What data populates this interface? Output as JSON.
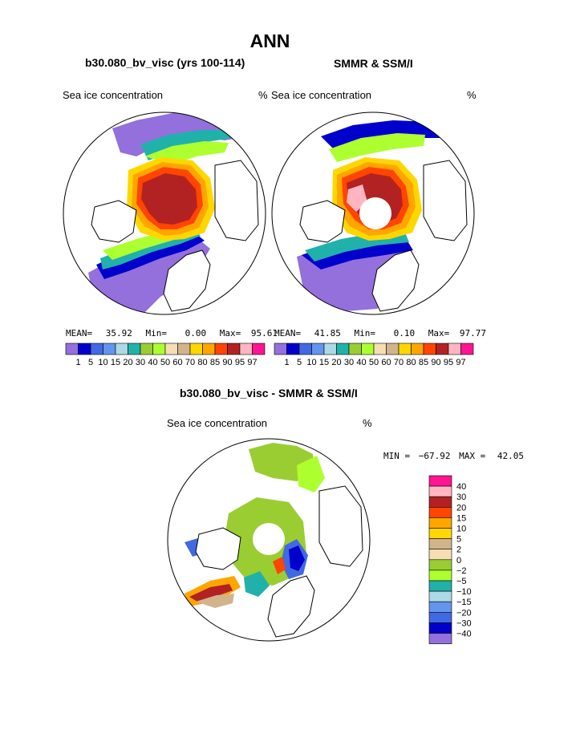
{
  "title": "ANN",
  "panel_left": {
    "case": "b30.080_bv_visc (yrs 100-114)",
    "variable": "Sea ice concentration",
    "units": "%",
    "stats": {
      "mean_label": "MEAN=",
      "mean": "35.92",
      "min_label": "Min=",
      "min": "0.00",
      "max_label": "Max=",
      "max": "95.61"
    }
  },
  "panel_right": {
    "case": "SMMR & SSM/I",
    "variable": "Sea ice concentration",
    "units": "%",
    "stats": {
      "mean_label": "MEAN=",
      "mean": "41.85",
      "min_label": "Min=",
      "min": "0.10",
      "max_label": "Max=",
      "max": "97.77"
    }
  },
  "concentration_scale": {
    "ticks": [
      "1",
      "5",
      "10",
      "15",
      "20",
      "30",
      "40",
      "50",
      "60",
      "70",
      "80",
      "85",
      "90",
      "95",
      "97"
    ],
    "colors": [
      "#9370DB",
      "#0000CD",
      "#4169E1",
      "#6495ED",
      "#ADD8E6",
      "#20B2AA",
      "#9ACD32",
      "#ADFF2F",
      "#F5DEB3",
      "#D2B48C",
      "#FFD700",
      "#FFA500",
      "#FF4500",
      "#B22222",
      "#FFB6C1",
      "#FF1493"
    ]
  },
  "panel_diff": {
    "case": "b30.080_bv_visc - SMMR & SSM/I",
    "variable": "Sea ice concentration",
    "units": "%",
    "stats": {
      "min_label": "MIN =",
      "min": "−67.92",
      "max_label": "MAX =",
      "max": "42.05"
    }
  },
  "difference_scale": {
    "ticks": [
      "40",
      "30",
      "20",
      "15",
      "10",
      "5",
      "2",
      "0",
      "−2",
      "−5",
      "−10",
      "−15",
      "−20",
      "−30",
      "−40"
    ],
    "colors": [
      "#FF1493",
      "#FFB6C1",
      "#B22222",
      "#FF4500",
      "#FFA500",
      "#FFD700",
      "#D2B48C",
      "#F5DEB3",
      "#9ACD32",
      "#ADFF2F",
      "#20B2AA",
      "#ADD8E6",
      "#6495ED",
      "#4169E1",
      "#0000CD",
      "#9370DB"
    ]
  }
}
